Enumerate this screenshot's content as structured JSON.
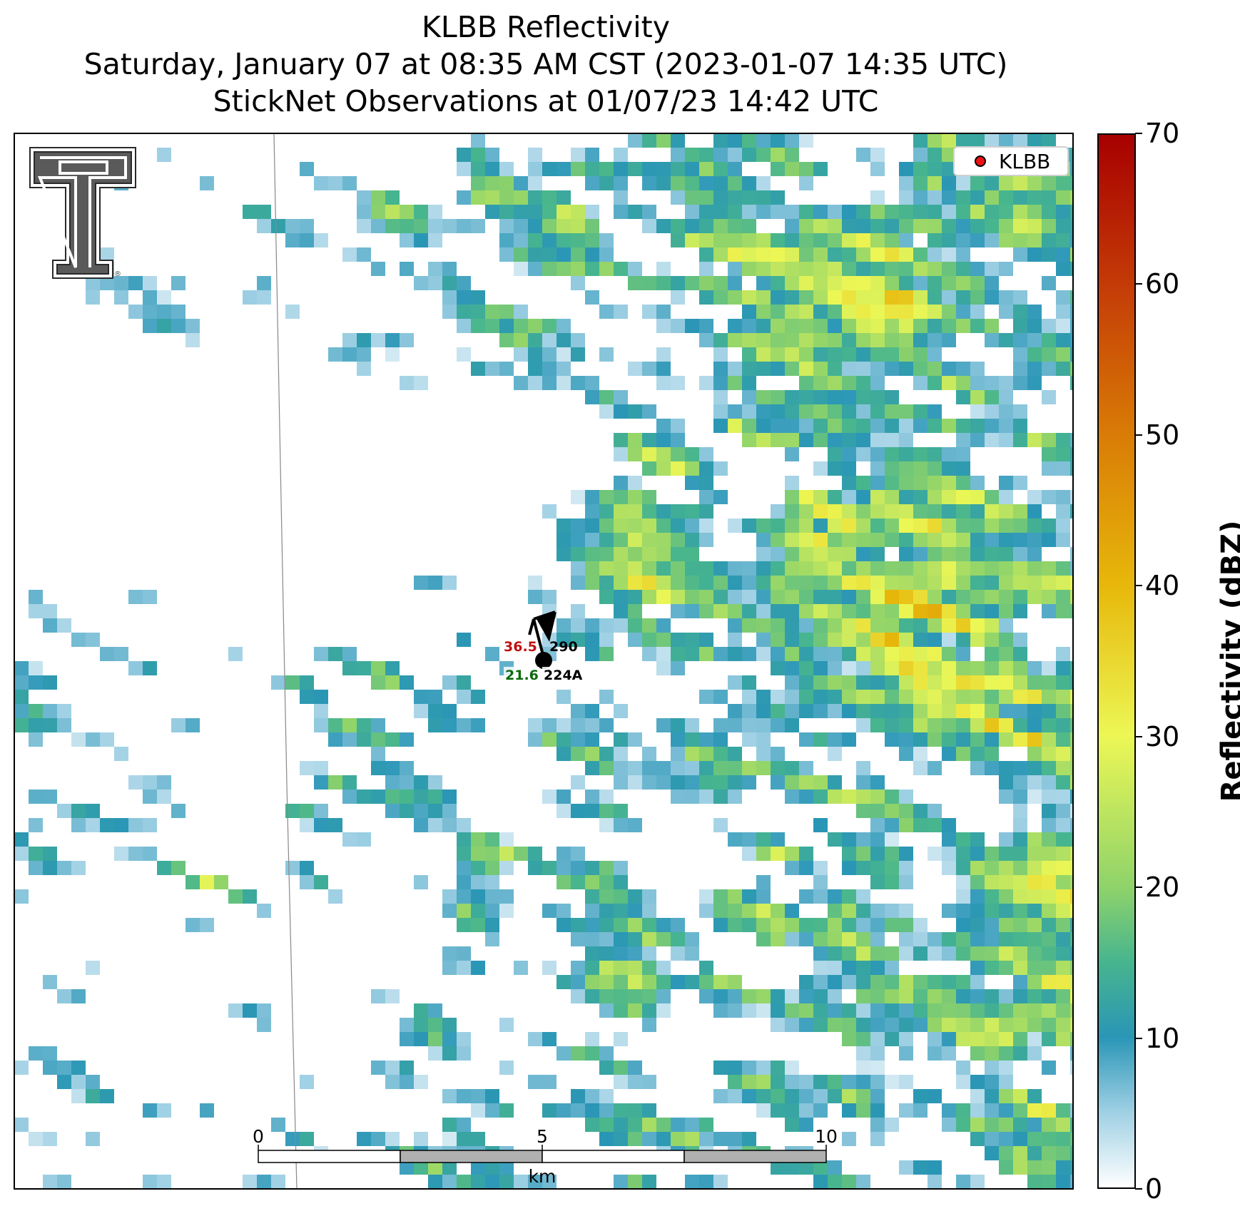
{
  "title": {
    "line1": "KLBB Reflectivity",
    "line2": "Saturday, January 07 at 08:35 AM CST (2023-01-07 14:35 UTC)",
    "line3": "StickNet Observations at 01/07/23 14:42 UTC"
  },
  "legend": {
    "label": "KLBB",
    "marker_color": "#ee1111"
  },
  "colorbar": {
    "label": "Reflectivity (dBZ)",
    "ticks": [
      "0",
      "10",
      "20",
      "30",
      "40",
      "50",
      "60",
      "70"
    ],
    "min": 0,
    "max": 70,
    "stops": [
      {
        "v": 0,
        "c": "#ffffff"
      },
      {
        "v": 5,
        "c": "#9fd0e4"
      },
      {
        "v": 10,
        "c": "#2a96b6"
      },
      {
        "v": 15,
        "c": "#47b58e"
      },
      {
        "v": 20,
        "c": "#8fd36a"
      },
      {
        "v": 30,
        "c": "#ecf755"
      },
      {
        "v": 40,
        "c": "#e7b80b"
      },
      {
        "v": 50,
        "c": "#d97c06"
      },
      {
        "v": 60,
        "c": "#c43b07"
      },
      {
        "v": 70,
        "c": "#a70000"
      }
    ]
  },
  "scalebar": {
    "labels": [
      "0",
      "5",
      "10"
    ],
    "unit": "km"
  },
  "station": {
    "temperature": "36.5",
    "dewpoint": "21.6",
    "wind_dir": "290",
    "id": "224A",
    "temp_color": "#c01010",
    "dew_color": "#0a6a0a"
  }
}
